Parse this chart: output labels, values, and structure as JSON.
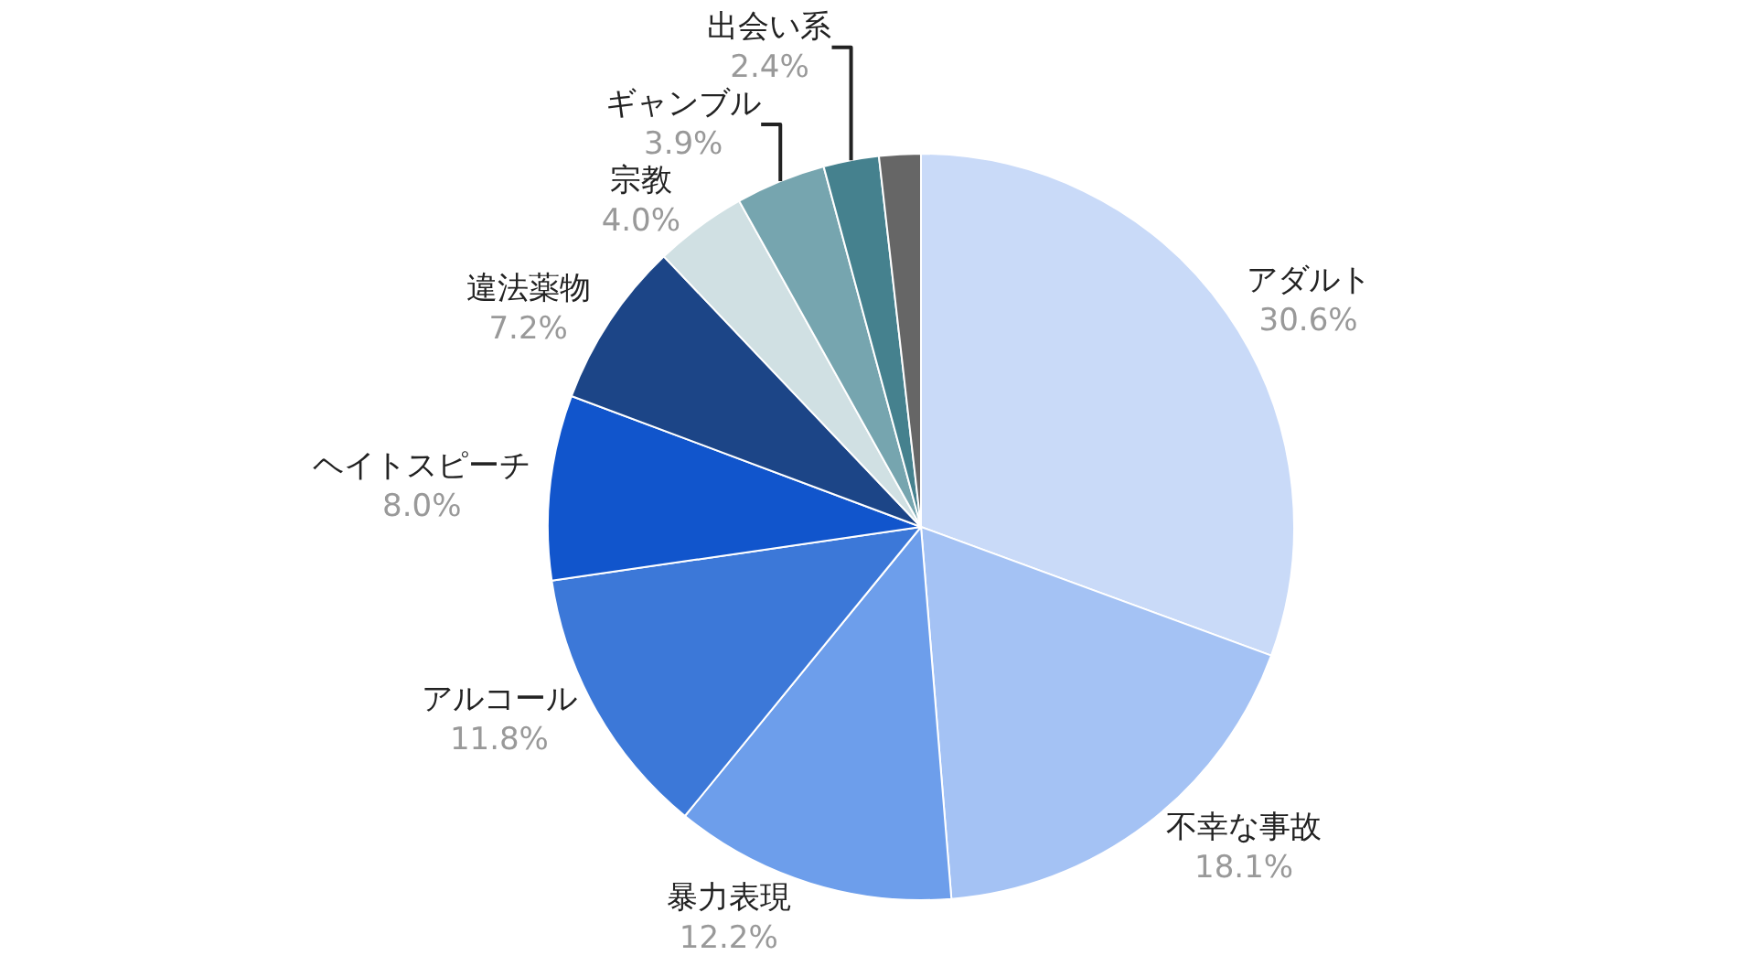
{
  "chart_data": {
    "type": "pie",
    "categories": [
      "アダルト",
      "不幸な事故",
      "暴力表現",
      "アルコール",
      "ヘイトスピーチ",
      "違法薬物",
      "宗教",
      "ギャンブル",
      "出会い系",
      null
    ],
    "values": [
      30.6,
      18.1,
      12.2,
      11.8,
      8.0,
      7.2,
      4.0,
      3.9,
      2.4,
      1.8
    ],
    "value_labels": [
      "30.6%",
      "18.1%",
      "12.2%",
      "11.8%",
      "8.0%",
      "7.2%",
      "4.0%",
      "3.9%",
      "2.4%",
      null
    ],
    "colors": [
      "#c9daf8",
      "#a4c2f4",
      "#6d9eeb",
      "#3c78d8",
      "#1155cc",
      "#1c4587",
      "#d0e0e3",
      "#76a5af",
      "#45818e",
      "#666666"
    ],
    "legend": false
  }
}
